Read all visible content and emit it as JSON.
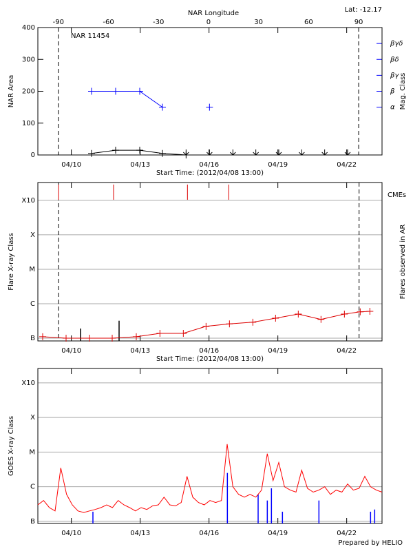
{
  "chart_data": [
    {
      "type": "line",
      "title": "NAR 11454",
      "annotation": "Lat: -12.17",
      "x2label": "NAR Longitude",
      "xlabel": "Start Time: (2012/04/08 13:00)",
      "ylabel": "NAR Area",
      "y2label": "Mag. Class",
      "y2color": "#0000ff",
      "xlim": [
        0,
        15
      ],
      "xticks": [
        {
          "value": 1.46,
          "label": "04/10"
        },
        {
          "value": 4.46,
          "label": "04/13"
        },
        {
          "value": 7.46,
          "label": "04/16"
        },
        {
          "value": 10.46,
          "label": "04/19"
        },
        {
          "value": 13.46,
          "label": "04/22"
        }
      ],
      "x2lim": [
        -102.3,
        104
      ],
      "x2ticks": [
        -90,
        -60,
        -30,
        0,
        30,
        60,
        90
      ],
      "ylim": [
        0,
        400
      ],
      "yticks": [
        0,
        100,
        200,
        300,
        400
      ],
      "y2lim": [
        0,
        400
      ],
      "y2ticks": [
        {
          "value": 150,
          "label": "α"
        },
        {
          "value": 200,
          "label": "β"
        },
        {
          "value": 250,
          "label": "βγ"
        },
        {
          "value": 300,
          "label": "βδ"
        },
        {
          "value": 350,
          "label": "βγδ"
        }
      ],
      "limb_axis": "x2",
      "limb_lines": [
        -90,
        90
      ],
      "series": [
        {
          "color": "#000000",
          "marker": "plus",
          "x": [
            2.34,
            3.39,
            4.44,
            5.43,
            6.46
          ],
          "values": [
            5,
            15,
            15,
            5,
            0
          ]
        },
        {
          "color": "#0000ff",
          "axis": "y2",
          "marker": "plus",
          "x": [
            2.34,
            3.39,
            4.44,
            5.43,
            6.46,
            7.48
          ],
          "values": [
            200,
            200,
            200,
            150,
            null,
            150
          ]
        },
        {
          "color": "#000000",
          "marker": "arrow",
          "line": false,
          "x": [
            6.46,
            7.48,
            8.5,
            9.5,
            10.5,
            11.5,
            12.5,
            13.5
          ],
          "values": [
            0,
            0,
            0,
            0,
            0,
            0,
            0,
            0
          ]
        }
      ]
    },
    {
      "type": "line",
      "log": true,
      "grid": true,
      "xlabel": "Start Time: (2012/04/08 13:00)",
      "ylabel": "Flare X-ray Class",
      "y2label": "Flares observed in AR",
      "cme_label": "CMEs",
      "xlim": [
        0,
        15
      ],
      "xticks": [
        {
          "value": 1.46,
          "label": "04/10"
        },
        {
          "value": 4.46,
          "label": "04/13"
        },
        {
          "value": 7.46,
          "label": "04/16"
        },
        {
          "value": 10.46,
          "label": "04/19"
        },
        {
          "value": 13.46,
          "label": "04/22"
        }
      ],
      "ylim": [
        8.3e-08,
        0.0033
      ],
      "yticks": [
        {
          "value": 1e-07,
          "label": "B"
        },
        {
          "value": 1e-06,
          "label": "C"
        },
        {
          "value": 1e-05,
          "label": "M"
        },
        {
          "value": 0.0001,
          "label": "X"
        },
        {
          "value": 0.001,
          "label": "X10"
        }
      ],
      "limb_axis": "x",
      "limb_lines": [
        0.9,
        14.0
      ],
      "cmes": {
        "color": "#dd0000",
        "x": [
          0.9,
          3.3,
          6.52,
          8.32
        ]
      },
      "flares": {
        "color": "#000000",
        "x": [
          1.86,
          3.54
        ],
        "values": [
          1.9e-07,
          3.2e-07
        ]
      },
      "series": [
        {
          "color": "#dd0000",
          "marker": "plus",
          "x": [
            0.21,
            1.23,
            2.25,
            3.24,
            4.29,
            5.32,
            6.34,
            7.33,
            8.35,
            9.37,
            10.36,
            11.35,
            12.34,
            13.36,
            14.05,
            14.47
          ],
          "values": [
            1.1e-07,
            1e-07,
            1e-07,
            1e-07,
            1.1e-07,
            1.38e-07,
            1.38e-07,
            2.2e-07,
            2.6e-07,
            2.9e-07,
            3.8e-07,
            5e-07,
            3.5e-07,
            5e-07,
            5.8e-07,
            6e-07
          ]
        }
      ]
    },
    {
      "type": "line",
      "log": true,
      "grid": true,
      "ylabel": "GOES X-ray Class",
      "footer": "Prepared by HELIO",
      "xlim": [
        0,
        15
      ],
      "xticks": [
        {
          "value": 1.46,
          "label": "04/10"
        },
        {
          "value": 4.46,
          "label": "04/13"
        },
        {
          "value": 7.46,
          "label": "04/16"
        },
        {
          "value": 10.46,
          "label": "04/19"
        },
        {
          "value": 13.46,
          "label": "04/22"
        }
      ],
      "ylim": [
        8.7e-08,
        0.0026
      ],
      "yticks": [
        {
          "value": 1e-07,
          "label": "B"
        },
        {
          "value": 1e-06,
          "label": "C"
        },
        {
          "value": 1e-05,
          "label": "M"
        },
        {
          "value": 0.0001,
          "label": "X"
        },
        {
          "value": 0.001,
          "label": "X10"
        }
      ],
      "flares": {
        "color": "#0000ff",
        "x": [
          2.4,
          8.26,
          9.6,
          10.0,
          10.18,
          10.66,
          12.25,
          14.5,
          14.68
        ],
        "values": [
          1.9e-07,
          2.5e-06,
          6e-07,
          4e-07,
          9e-07,
          1.9e-07,
          4e-07,
          1.9e-07,
          2.2e-07
        ]
      },
      "series": [
        {
          "color": "#ff0000",
          "x": [
            0,
            0.25,
            0.5,
            0.75,
            1,
            1.25,
            1.5,
            1.75,
            2,
            2.25,
            2.5,
            2.75,
            3,
            3.25,
            3.5,
            3.75,
            4,
            4.25,
            4.5,
            4.75,
            5,
            5.25,
            5.5,
            5.75,
            6,
            6.25,
            6.5,
            6.75,
            7,
            7.25,
            7.5,
            7.75,
            8,
            8.25,
            8.5,
            8.75,
            9,
            9.25,
            9.5,
            9.75,
            10,
            10.25,
            10.5,
            10.75,
            11,
            11.25,
            11.5,
            11.75,
            12,
            12.25,
            12.5,
            12.75,
            13,
            13.25,
            13.5,
            13.75,
            14,
            14.25,
            14.5,
            14.75,
            15
          ],
          "values": [
            3e-07,
            4e-07,
            2.5e-07,
            2e-07,
            3.5e-06,
            6e-07,
            3e-07,
            2e-07,
            1.8e-07,
            2e-07,
            2.2e-07,
            2.5e-07,
            3e-07,
            2.5e-07,
            4e-07,
            3e-07,
            2.5e-07,
            2e-07,
            2.5e-07,
            2.2e-07,
            2.8e-07,
            3e-07,
            5e-07,
            3e-07,
            2.8e-07,
            3.5e-07,
            2e-06,
            5e-07,
            3.5e-07,
            3e-07,
            4e-07,
            3.5e-07,
            4e-07,
            1.7e-05,
            1e-06,
            6e-07,
            5e-07,
            6e-07,
            5e-07,
            8e-07,
            9e-06,
            1.5e-06,
            5e-06,
            1e-06,
            8e-07,
            7e-07,
            3e-06,
            9e-07,
            7e-07,
            8e-07,
            1e-06,
            6e-07,
            8e-07,
            7e-07,
            1.2e-06,
            8e-07,
            9e-07,
            2e-06,
            1e-06,
            8e-07,
            7e-07
          ]
        }
      ]
    }
  ]
}
